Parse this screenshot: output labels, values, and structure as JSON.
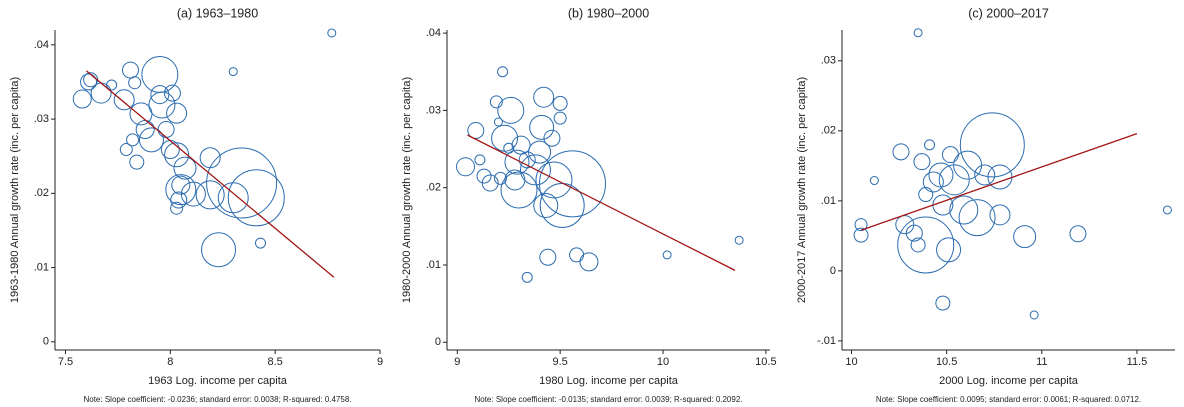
{
  "chart_data": [
    {
      "type": "scatter",
      "title": "(a) 1963–1980",
      "x_label": "1963 Log. income per capita",
      "y_label": "1963-1980 Annual growth rate (inc. per capita)",
      "note": "Note: Slope coefficient: -0.0236; standard error: 0.0038; R-squared: 0.4758.",
      "color": "#2b6cb0",
      "x": [
        7.58,
        7.61,
        7.62,
        7.67,
        7.72,
        7.78,
        7.81,
        7.83,
        7.86,
        7.79,
        7.82,
        7.84,
        7.88,
        7.91,
        7.95,
        7.96,
        7.95,
        8.01,
        8.03,
        7.98,
        8.0,
        8.03,
        8.04,
        8.03,
        8.05,
        8.07,
        8.05,
        8.19,
        8.19,
        8.11,
        8.34,
        8.41,
        8.23,
        8.43,
        8.3,
        8.77,
        8.3
      ],
      "y": [
        0.0327,
        0.035,
        0.0353,
        0.0335,
        0.0346,
        0.0326,
        0.0366,
        0.0349,
        0.0307,
        0.0259,
        0.0272,
        0.0242,
        0.0286,
        0.0272,
        0.036,
        0.0319,
        0.0333,
        0.0335,
        0.0308,
        0.0286,
        0.0259,
        0.0252,
        0.0191,
        0.018,
        0.0211,
        0.0234,
        0.0205,
        0.0248,
        0.0198,
        0.0199,
        0.0214,
        0.0194,
        0.0124,
        0.0133,
        0.0364,
        0.0416,
        0.0194
      ],
      "sizes": [
        9,
        8,
        7,
        10,
        5,
        10,
        8,
        6,
        11,
        6,
        6,
        7,
        9,
        12,
        18,
        13,
        9,
        8,
        10,
        8,
        9,
        12,
        8,
        6,
        9,
        11,
        15,
        10,
        14,
        12,
        35,
        28,
        17,
        5,
        4,
        4,
        15
      ],
      "fit": {
        "color": "#a31515",
        "x": [
          7.6,
          8.78
        ],
        "y": [
          0.0365,
          0.0087
        ]
      },
      "xlim": [
        7.45,
        9
      ],
      "ylim": [
        -0.0011,
        0.042
      ],
      "xticks": [
        7.5,
        8,
        8.5,
        9
      ],
      "yticks": [
        0,
        {
          "value": 0.01,
          "label": ".01"
        },
        {
          "value": 0.02,
          "label": ".02"
        },
        {
          "value": 0.03,
          "label": ".03"
        },
        {
          "value": 0.04,
          "label": ".04"
        }
      ]
    },
    {
      "type": "scatter",
      "title": "(b) 1980–2000",
      "x_label": "1980 Log. income per capita",
      "y_label": "1980-2000 Annual growth rate (inc. per capita)",
      "note": "Note: Slope coefficient: -0.0135; standard error: 0.0039; R-squared: 0.2092.",
      "color": "#2b6cb0",
      "x": [
        9.04,
        9.09,
        9.11,
        9.13,
        9.16,
        9.19,
        9.22,
        9.2,
        9.23,
        9.26,
        9.21,
        9.29,
        9.28,
        9.3,
        9.31,
        9.34,
        9.38,
        9.4,
        9.41,
        9.43,
        9.42,
        9.44,
        9.34,
        9.46,
        9.47,
        9.5,
        9.5,
        9.56,
        9.51,
        9.58,
        9.64,
        10.02,
        10.37,
        9.25
      ],
      "y": [
        0.0227,
        0.0274,
        0.0236,
        0.0215,
        0.0206,
        0.0311,
        0.035,
        0.0285,
        0.0264,
        0.03,
        0.0212,
        0.0233,
        0.021,
        0.0197,
        0.0255,
        0.0236,
        0.0223,
        0.0246,
        0.0278,
        0.0177,
        0.0317,
        0.011,
        0.0084,
        0.0264,
        0.021,
        0.029,
        0.0309,
        0.0205,
        0.0177,
        0.0113,
        0.0104,
        0.0113,
        0.0132,
        0.0251
      ],
      "sizes": [
        9,
        8,
        5,
        7,
        8,
        6,
        5,
        4,
        13,
        13,
        6,
        12,
        10,
        18,
        9,
        8,
        15,
        11,
        12,
        12,
        10,
        8,
        5,
        8,
        18,
        6,
        7,
        33,
        22,
        7,
        9,
        4,
        4,
        5
      ],
      "fit": {
        "color": "#a31515",
        "x": [
          9.05,
          10.35
        ],
        "y": [
          0.0268,
          0.0093
        ]
      },
      "xlim": [
        8.95,
        10.52
      ],
      "ylim": [
        -0.001,
        0.0404
      ],
      "xticks": [
        9,
        9.5,
        10,
        10.5
      ],
      "yticks": [
        0,
        {
          "value": 0.01,
          "label": ".01"
        },
        {
          "value": 0.02,
          "label": ".02"
        },
        {
          "value": 0.03,
          "label": ".03"
        },
        {
          "value": 0.04,
          "label": ".04"
        }
      ]
    },
    {
      "type": "scatter",
      "title": "(c) 2000–2017",
      "x_label": "2000 Log. income per capita",
      "y_label": "2000-2017 Annual growth rate (inc. per capita)",
      "note": "Note: Slope coefficient: 0.0095; standard error: 0.0061; R-squared: 0.0712.",
      "color": "#2b6cb0",
      "x": [
        10.05,
        10.05,
        10.12,
        10.26,
        10.28,
        10.33,
        10.35,
        10.37,
        10.35,
        10.41,
        10.39,
        10.43,
        10.39,
        10.47,
        10.48,
        10.51,
        10.52,
        10.54,
        10.59,
        10.61,
        10.66,
        10.7,
        10.74,
        10.78,
        10.78,
        10.91,
        10.48,
        10.96,
        11.19,
        11.66
      ],
      "y": [
        0.0066,
        0.0051,
        0.0129,
        0.017,
        0.0066,
        0.0054,
        0.0037,
        0.0156,
        0.034,
        0.018,
        0.0109,
        0.0127,
        0.0037,
        0.0137,
        0.0094,
        0.003,
        0.0166,
        0.013,
        0.0087,
        0.0151,
        0.0076,
        0.0137,
        0.018,
        0.0134,
        0.008,
        0.0049,
        -0.0046,
        -0.0063,
        0.0053,
        0.0087
      ],
      "sizes": [
        6,
        7,
        4,
        8,
        9,
        8,
        7,
        8,
        4,
        5,
        7,
        10,
        28,
        12,
        10,
        12,
        8,
        15,
        14,
        14,
        18,
        10,
        32,
        12,
        10,
        11,
        7,
        4,
        8,
        4
      ],
      "fit": {
        "color": "#a31515",
        "x": [
          10.05,
          11.5
        ],
        "y": [
          0.0058,
          0.0196
        ]
      },
      "xlim": [
        9.95,
        11.7
      ],
      "ylim": [
        -0.0113,
        0.0344
      ],
      "xticks": [
        10,
        10.5,
        11,
        11.5
      ],
      "yticks": [
        {
          "value": -0.01,
          "label": "-.01"
        },
        0,
        {
          "value": 0.01,
          "label": ".01"
        },
        {
          "value": 0.02,
          "label": ".02"
        },
        {
          "value": 0.03,
          "label": ".03"
        }
      ]
    }
  ]
}
